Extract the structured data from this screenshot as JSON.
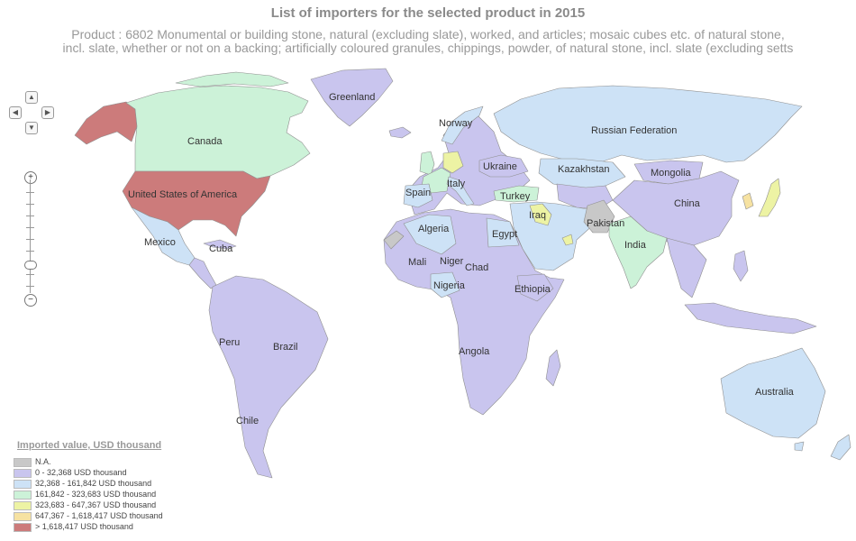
{
  "title": "List of importers for the selected product in 2015",
  "subtitle_line1": "Product : 6802 Monumental or building stone, natural (excluding slate), worked, and articles; mosaic cubes etc. of natural stone,",
  "subtitle_line2": "incl. slate, whether or not on a backing; artificially coloured granules, chippings, powder, of natural stone, incl. slate (excluding setts",
  "legend": {
    "title": "Imported value, USD thousand",
    "items": [
      {
        "label": "N.A.",
        "color": "#c8c8c8"
      },
      {
        "label": "0 - 32,368 USD thousand",
        "color": "#c9c5ee"
      },
      {
        "label": "32,368 - 161,842 USD thousand",
        "color": "#cde2f6"
      },
      {
        "label": "161,842 - 323,683 USD thousand",
        "color": "#ccf2d8"
      },
      {
        "label": "323,683 - 647,367 USD thousand",
        "color": "#edf3a4"
      },
      {
        "label": "647,367 - 1,618,417 USD thousand",
        "color": "#f6e2a2"
      },
      {
        "label": "> 1,618,417 USD thousand",
        "color": "#cc7b7b"
      }
    ]
  },
  "colors": {
    "ocean": "#ffffff",
    "border": "#8f8f8f",
    "na": "#c8c8c8",
    "tier1": "#c9c5ee",
    "tier2": "#cde2f6",
    "tier3": "#ccf2d8",
    "tier4": "#edf3a4",
    "tier5": "#f6e2a2",
    "tier6": "#cc7b7b"
  },
  "countries": {
    "greenland": "Greenland",
    "norway": "Norway",
    "russia": "Russian Federation",
    "canada": "Canada",
    "kazakhstan": "Kazakhstan",
    "mongolia": "Mongolia",
    "ukraine": "Ukraine",
    "usa": "United States of America",
    "spain": "Spain",
    "italy": "Italy",
    "turkey": "Turkey",
    "china": "China",
    "iraq": "Iraq",
    "pakistan": "Pakistan",
    "algeria": "Algeria",
    "egypt": "Egypt",
    "mexico": "Mexico",
    "cuba": "Cuba",
    "india": "India",
    "mali": "Mali",
    "niger": "Niger",
    "chad": "Chad",
    "nigeria": "Nigeria",
    "ethiopia": "Ethiopia",
    "peru": "Peru",
    "brazil": "Brazil",
    "angola": "Angola",
    "australia": "Australia",
    "chile": "Chile"
  },
  "nav": {
    "up": "▲",
    "down": "▼",
    "left": "◀",
    "right": "▶",
    "zoom_in": "+",
    "zoom_out": "−"
  }
}
